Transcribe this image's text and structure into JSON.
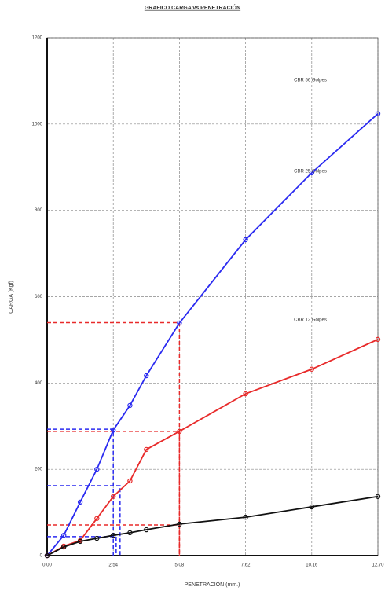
{
  "chart_data": {
    "type": "line",
    "title": "GRAFICO CARGA vs PENETRACIÓN",
    "x_label": "PENETRACIÓN (mm.)",
    "y_label": "CARGA (Kgf)",
    "x": [
      0,
      0.64,
      1.27,
      1.91,
      2.54,
      3.18,
      3.81,
      5.08,
      7.62,
      10.16,
      12.7
    ],
    "series": [
      {
        "name": "CBR 56 Golpes",
        "color": "#2a2af0",
        "values": [
          0,
          47,
          124,
          200,
          291,
          348,
          417,
          539,
          732,
          887,
          1024
        ]
      },
      {
        "name": "CBR 25 Golpes",
        "color": "#e82a2a",
        "values": [
          0,
          22,
          35,
          86,
          137,
          173,
          246,
          288,
          375,
          432,
          501
        ]
      },
      {
        "name": "CBR 12 Golpes",
        "color": "#111111",
        "values": [
          0,
          20,
          33,
          40,
          47,
          53,
          60,
          73,
          89,
          113,
          137
        ]
      }
    ],
    "guides": [
      {
        "x": 2.54,
        "y": 293,
        "color": "#2a2af0"
      },
      {
        "x": 2.8,
        "y": 162,
        "color": "#2a2af0"
      },
      {
        "x": 2.65,
        "y": 44,
        "color": "#2a2af0"
      },
      {
        "x": 5.08,
        "y": 540,
        "color": "#e82a2a"
      },
      {
        "x": 5.08,
        "y": 288,
        "color": "#e82a2a"
      },
      {
        "x": 5.08,
        "y": 71,
        "color": "#e82a2a"
      }
    ],
    "xlim": [
      0,
      12.7
    ],
    "xticks": [
      {
        "value": 0,
        "label": "0.00"
      },
      2.54,
      5.08,
      7.62,
      10.16,
      {
        "value": 12.7,
        "label": "12.70"
      }
    ],
    "ylim": [
      0,
      1200
    ],
    "yticks": [
      0,
      200,
      400,
      600,
      800,
      1000,
      1200
    ],
    "grid": true
  }
}
